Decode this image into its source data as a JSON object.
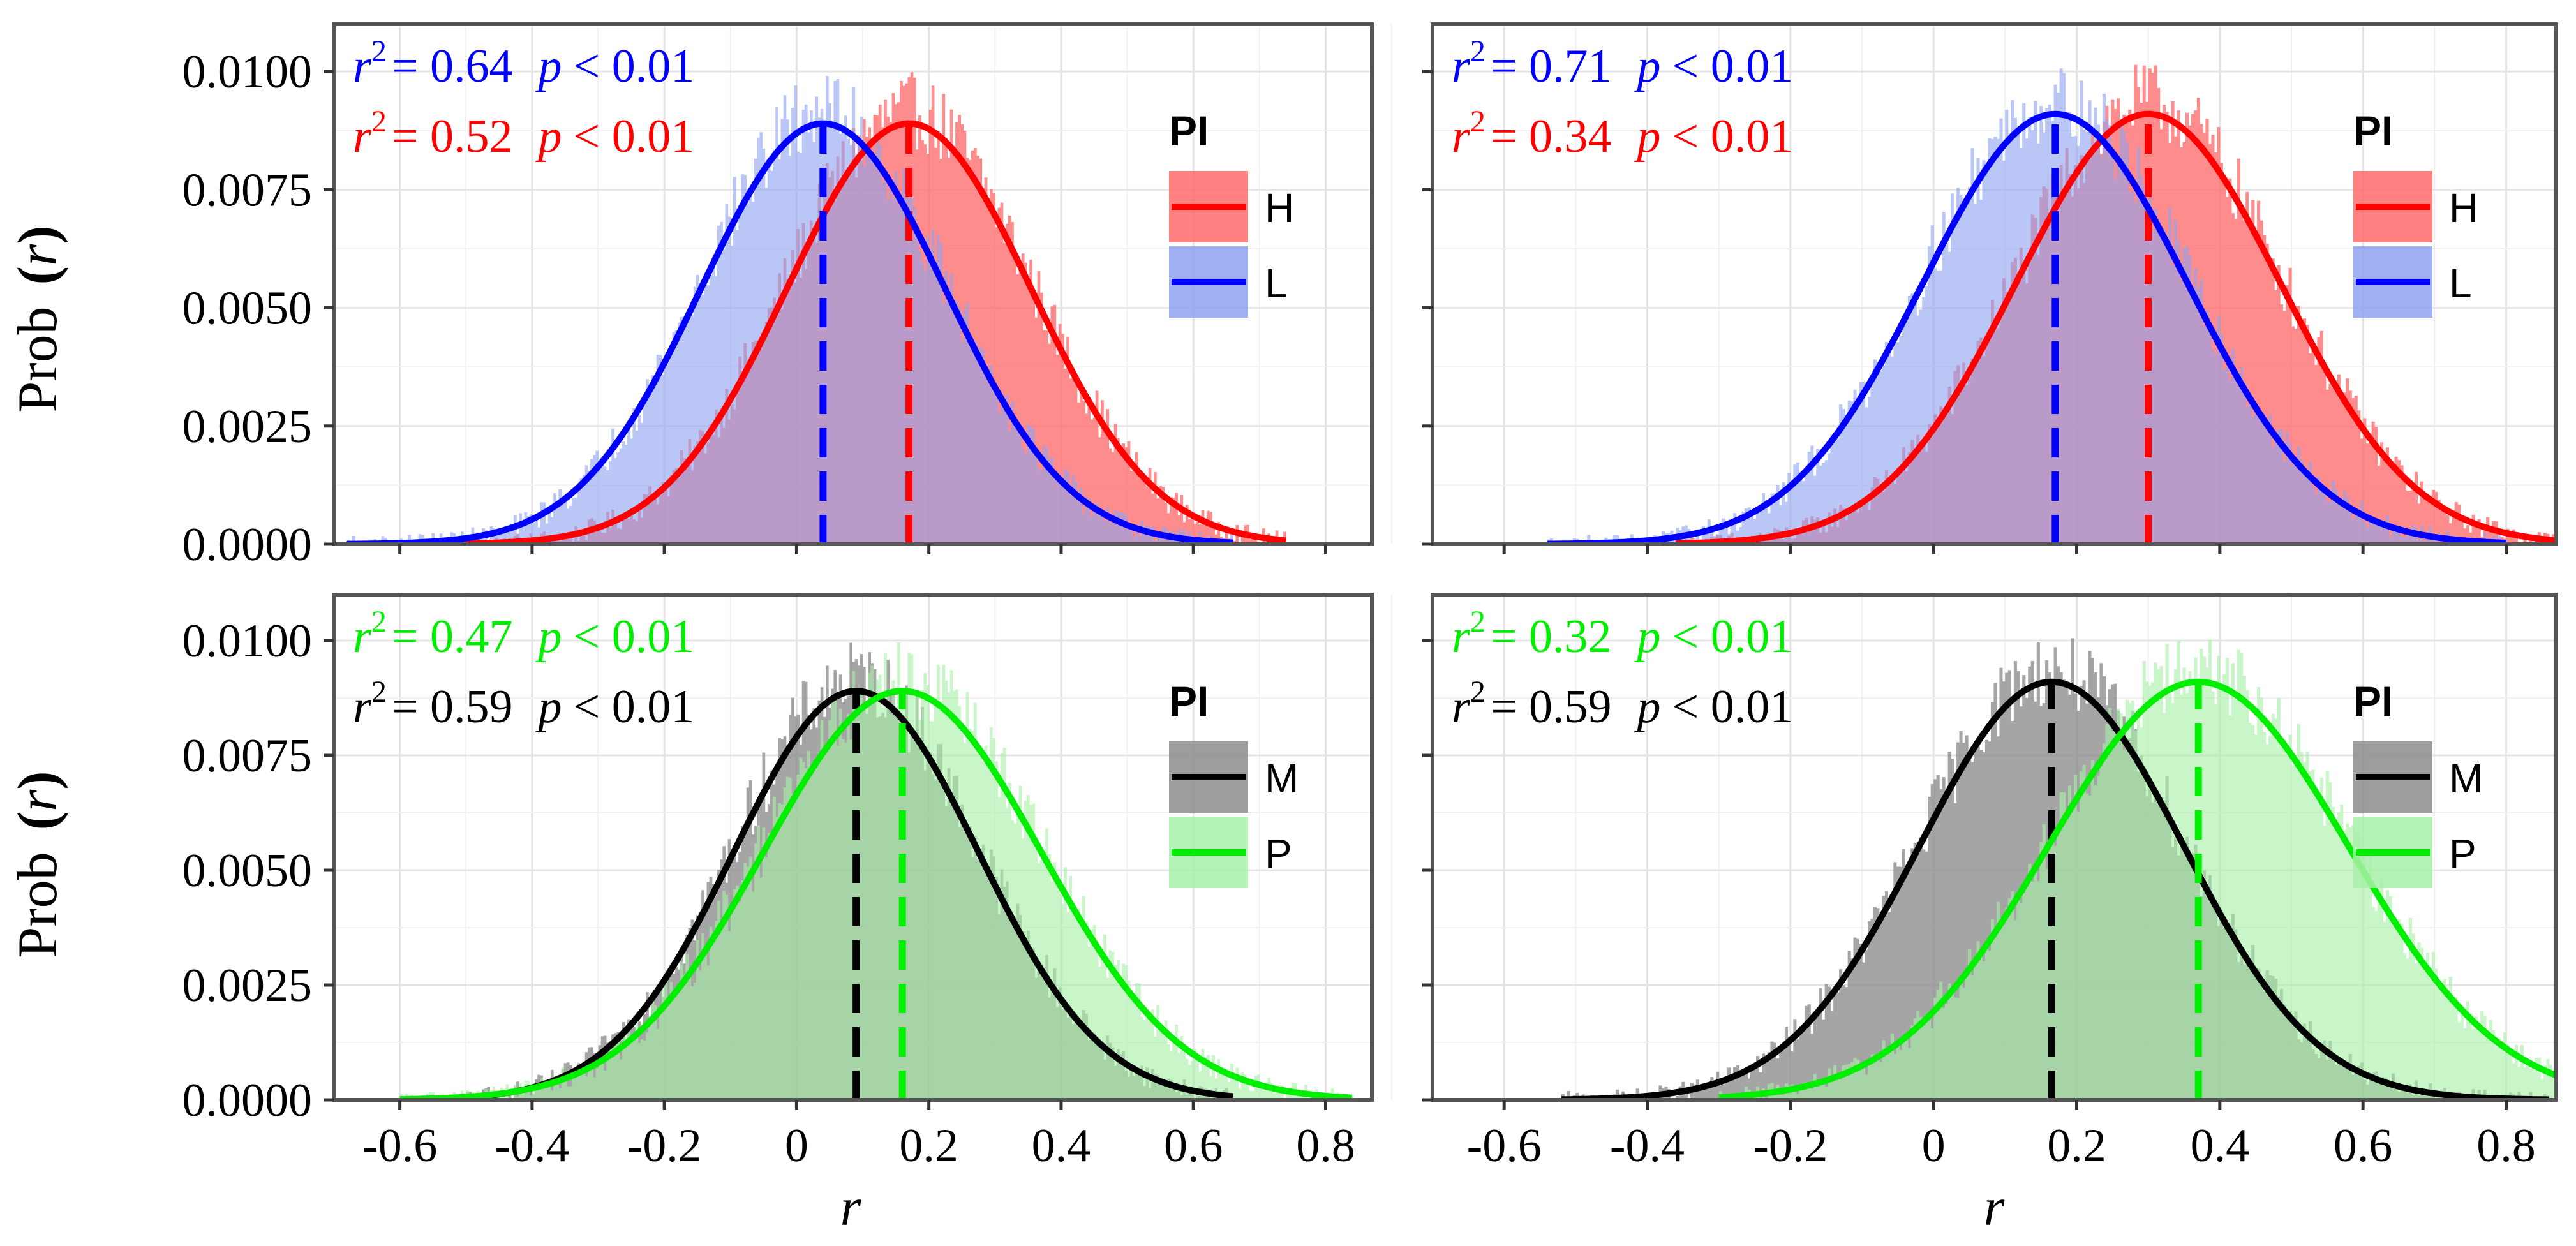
{
  "figure": {
    "ylabel_prefix": "Prob",
    "ylabel_var": "r",
    "xlabel": "r"
  },
  "chart_data": [
    {
      "type": "histogram-density",
      "panel": "top-left",
      "x_ticks": [
        "-0.6",
        "-0.4",
        "-0.2",
        "0",
        "0.2",
        "0.4",
        "0.6",
        "0.8"
      ],
      "x_tick_values": [
        -0.6,
        -0.4,
        -0.2,
        0,
        0.2,
        0.4,
        0.6,
        0.8
      ],
      "y_ticks": [
        "0.0000",
        "0.0025",
        "0.0050",
        "0.0075",
        "0.0100"
      ],
      "y_tick_values": [
        0,
        0.0025,
        0.005,
        0.0075,
        0.01
      ],
      "xlim": [
        -0.7,
        0.87
      ],
      "ylim": [
        0,
        0.011
      ],
      "legend": {
        "title": "PI",
        "position": "right"
      },
      "series": [
        {
          "name": "H",
          "color": "#ff0000",
          "fill": "#ff6b6b",
          "mean": 0.17,
          "sd": 0.185,
          "peak": 0.0089,
          "xmin": -0.5,
          "xmax": 0.74,
          "annotation": {
            "r2_label": "r",
            "r2_sup": "2",
            "r2_value": "= 0.52",
            "p_label": "p",
            "p_value": "< 0.01"
          }
        },
        {
          "name": "L",
          "color": "#0000ff",
          "fill": "#8fa3ef",
          "mean": 0.04,
          "sd": 0.185,
          "peak": 0.0089,
          "xmin": -0.68,
          "xmax": 0.66,
          "annotation": {
            "r2_label": "r",
            "r2_sup": "2",
            "r2_value": "= 0.64",
            "p_label": "p",
            "p_value": "< 0.01"
          }
        }
      ]
    },
    {
      "type": "histogram-density",
      "panel": "top-right",
      "x_ticks": [
        "-0.6",
        "-0.4",
        "-0.2",
        "0",
        "0.2",
        "0.4",
        "0.6",
        "0.8"
      ],
      "x_tick_values": [
        -0.6,
        -0.4,
        -0.2,
        0,
        0.2,
        0.4,
        0.6,
        0.8
      ],
      "y_ticks": [
        "0.0000",
        "0.0025",
        "0.0050",
        "0.0075",
        "0.0100"
      ],
      "y_tick_values": [
        0,
        0.0025,
        0.005,
        0.0075,
        0.01
      ],
      "xlim": [
        -0.7,
        0.87
      ],
      "ylim": [
        0,
        0.011
      ],
      "legend": {
        "title": "PI",
        "position": "right"
      },
      "series": [
        {
          "name": "H",
          "color": "#ff0000",
          "fill": "#ff6b6b",
          "mean": 0.3,
          "sd": 0.185,
          "peak": 0.0091,
          "xmin": -0.36,
          "xmax": 0.87,
          "annotation": {
            "r2_label": "r",
            "r2_sup": "2",
            "r2_value": "= 0.34",
            "p_label": "p",
            "p_value": "< 0.01"
          }
        },
        {
          "name": "L",
          "color": "#0000ff",
          "fill": "#8fa3ef",
          "mean": 0.17,
          "sd": 0.185,
          "peak": 0.0091,
          "xmin": -0.54,
          "xmax": 0.8,
          "annotation": {
            "r2_label": "r",
            "r2_sup": "2",
            "r2_value": "= 0.71",
            "p_label": "p",
            "p_value": "< 0.01"
          }
        }
      ]
    },
    {
      "type": "histogram-density",
      "panel": "bottom-left",
      "x_ticks": [
        "-0.6",
        "-0.4",
        "-0.2",
        "0",
        "0.2",
        "0.4",
        "0.6",
        "0.8"
      ],
      "x_tick_values": [
        -0.6,
        -0.4,
        -0.2,
        0,
        0.2,
        0.4,
        0.6,
        0.8
      ],
      "y_ticks": [
        "0.0000",
        "0.0025",
        "0.0050",
        "0.0075",
        "0.0100"
      ],
      "y_tick_values": [
        0,
        0.0025,
        0.005,
        0.0075,
        0.01
      ],
      "xlim": [
        -0.7,
        0.87
      ],
      "ylim": [
        0,
        0.011
      ],
      "legend": {
        "title": "PI",
        "position": "right"
      },
      "series": [
        {
          "name": "M",
          "color": "#000000",
          "fill": "#8c8c8c",
          "mean": 0.09,
          "sd": 0.185,
          "peak": 0.0089,
          "xmin": -0.5,
          "xmax": 0.66,
          "annotation": {
            "r2_label": "r",
            "r2_sup": "2",
            "r2_value": "= 0.59",
            "p_label": "p",
            "p_value": "< 0.01"
          }
        },
        {
          "name": "P",
          "color": "#00ee00",
          "fill": "#a8f0a8",
          "mean": 0.16,
          "sd": 0.21,
          "peak": 0.0089,
          "xmin": -0.6,
          "xmax": 0.84,
          "annotation": {
            "r2_label": "r",
            "r2_sup": "2",
            "r2_value": "= 0.47",
            "p_label": "p",
            "p_value": "< 0.01"
          }
        }
      ]
    },
    {
      "type": "histogram-density",
      "panel": "bottom-right",
      "x_ticks": [
        "-0.6",
        "-0.4",
        "-0.2",
        "0",
        "0.2",
        "0.4",
        "0.6",
        "0.8"
      ],
      "x_tick_values": [
        -0.6,
        -0.4,
        -0.2,
        0,
        0.2,
        0.4,
        0.6,
        0.8
      ],
      "y_ticks": [
        "0.0000",
        "0.0025",
        "0.0050",
        "0.0075",
        "0.0100"
      ],
      "y_tick_values": [
        0,
        0.0025,
        0.005,
        0.0075,
        0.01
      ],
      "xlim": [
        -0.7,
        0.87
      ],
      "ylim": [
        0,
        0.011
      ],
      "legend": {
        "title": "PI",
        "position": "right"
      },
      "series": [
        {
          "name": "M",
          "color": "#000000",
          "fill": "#8c8c8c",
          "mean": 0.165,
          "sd": 0.185,
          "peak": 0.0091,
          "xmin": -0.52,
          "xmax": 0.86,
          "annotation": {
            "r2_label": "r",
            "r2_sup": "2",
            "r2_value": "= 0.59",
            "p_label": "p",
            "p_value": "< 0.01"
          }
        },
        {
          "name": "P",
          "color": "#00ee00",
          "fill": "#a8f0a8",
          "mean": 0.37,
          "sd": 0.21,
          "peak": 0.0091,
          "xmin": -0.3,
          "xmax": 0.87,
          "annotation": {
            "r2_label": "r",
            "r2_sup": "2",
            "r2_value": "= 0.32",
            "p_label": "p",
            "p_value": "< 0.01"
          }
        }
      ]
    }
  ]
}
